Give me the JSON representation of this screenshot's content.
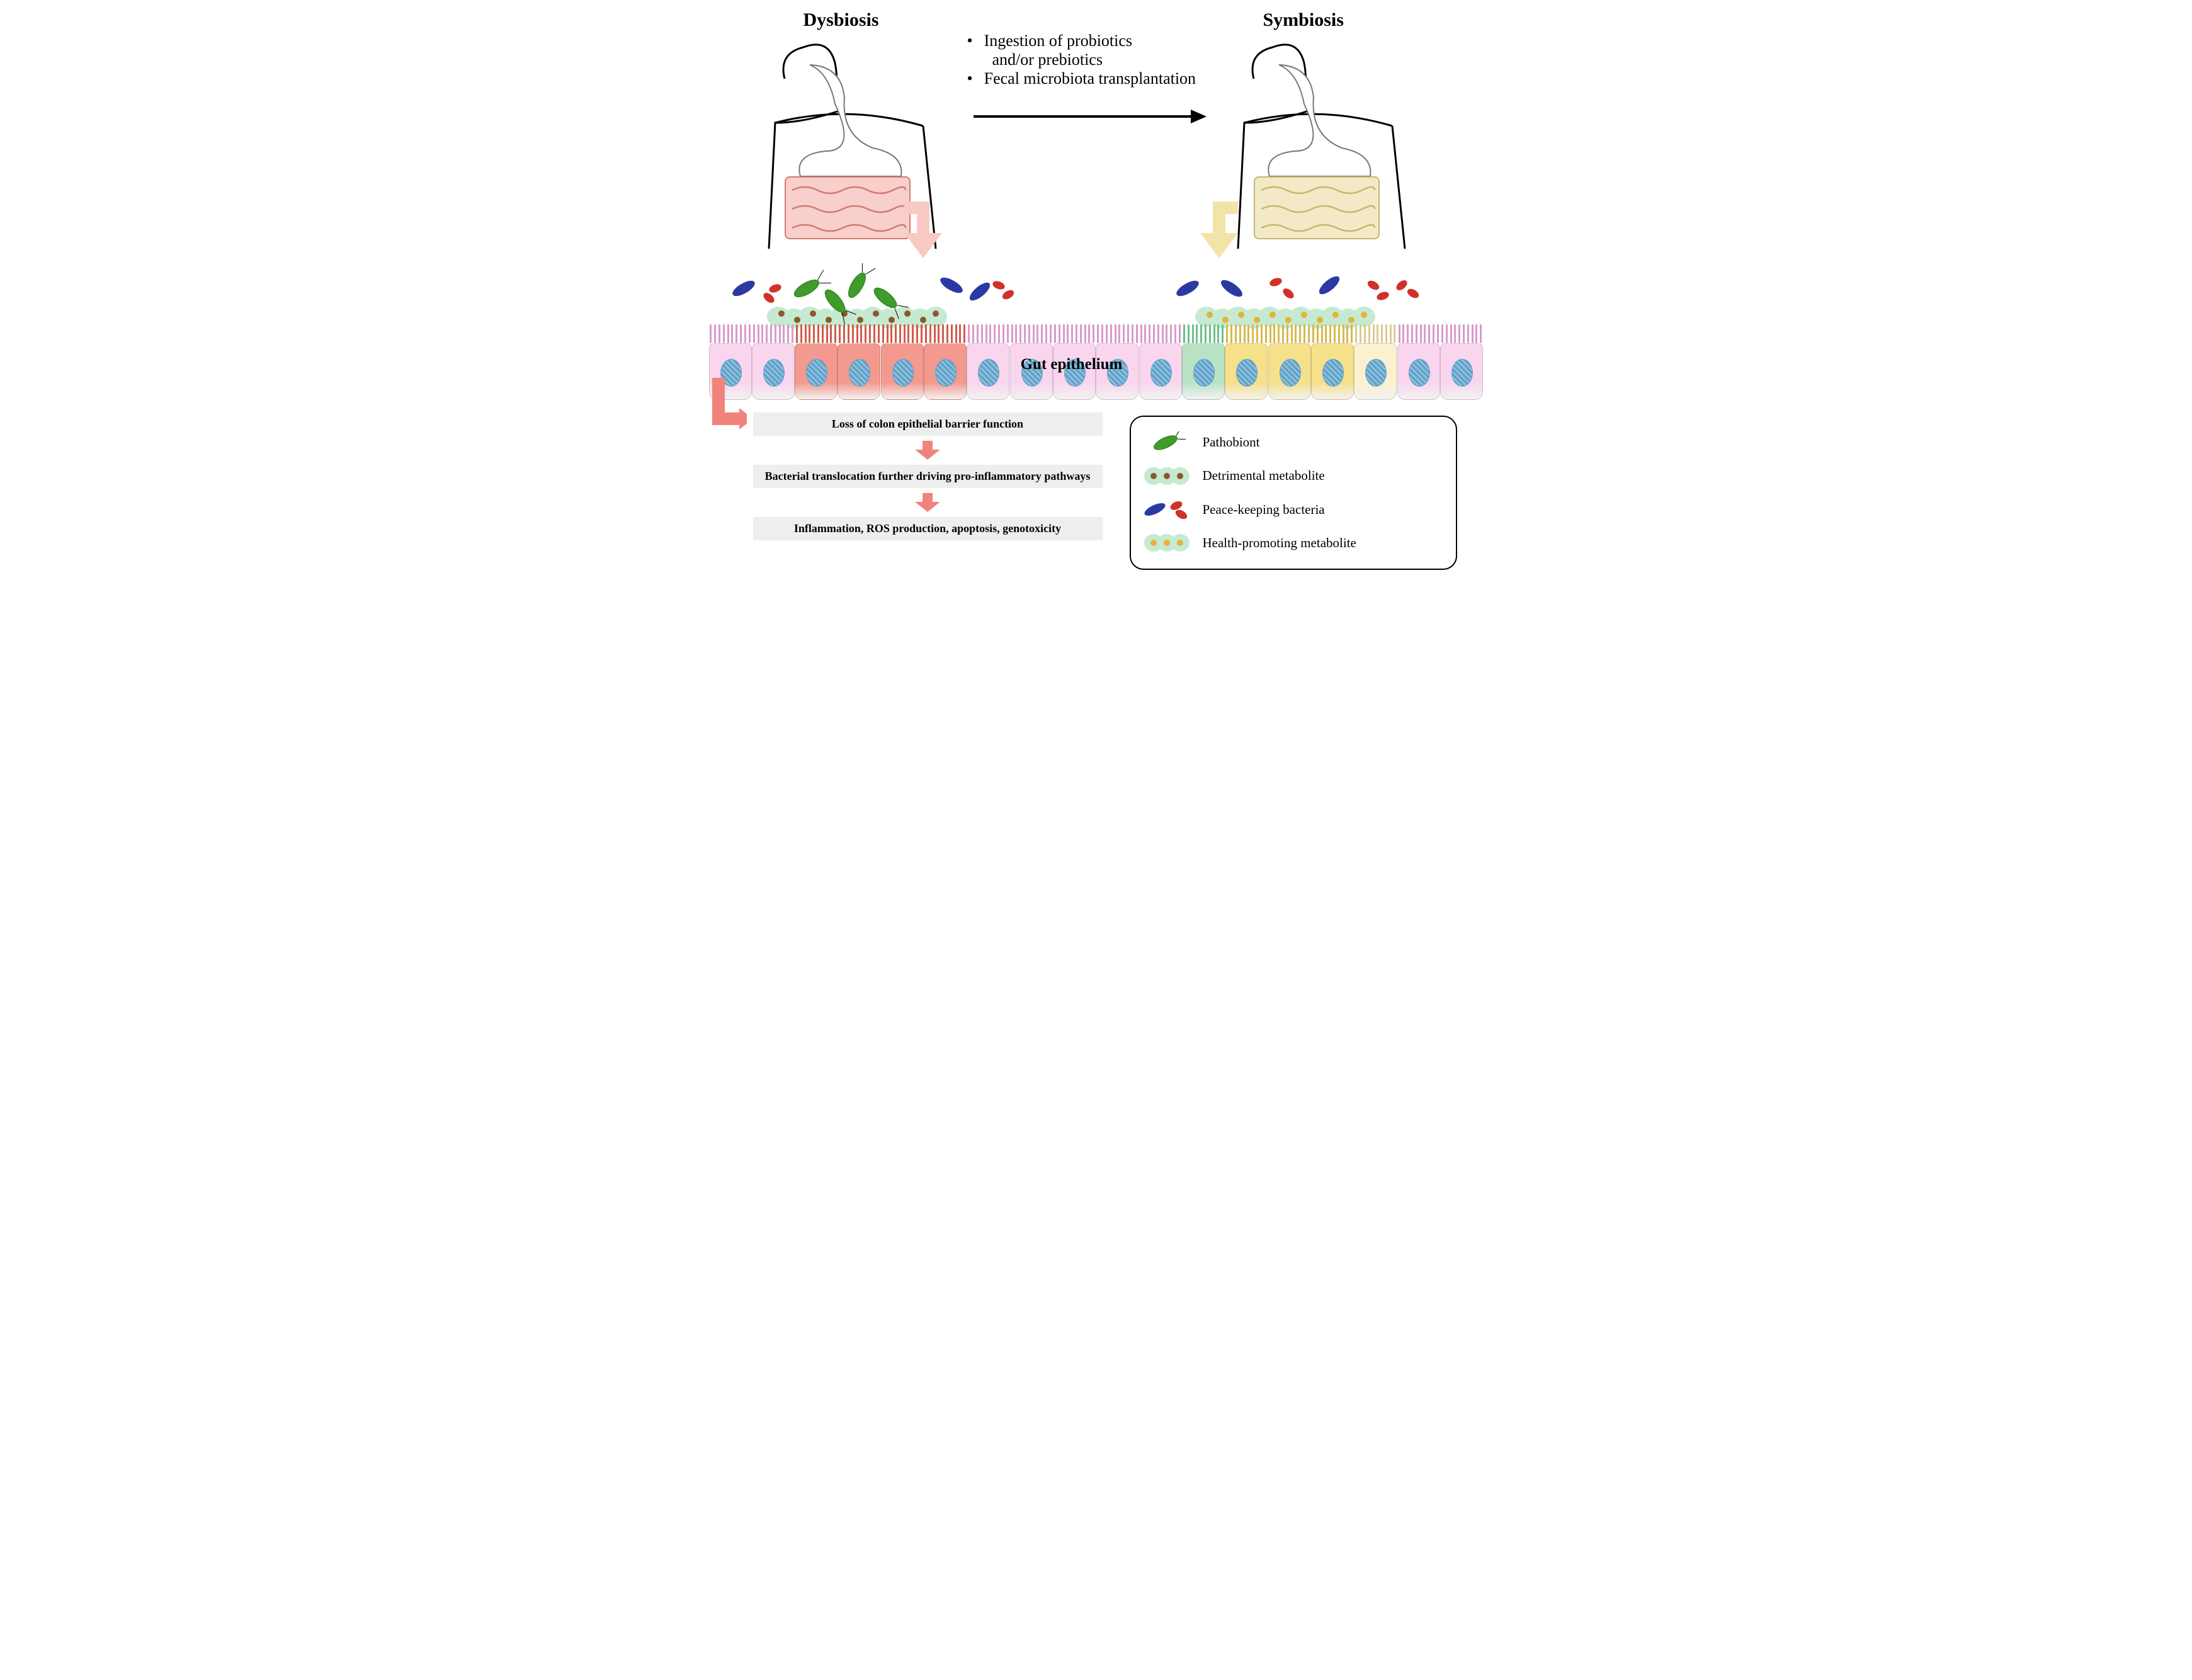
{
  "titles": {
    "dysbiosis": "Dysbiosis",
    "symbiosis": "Symbiosis"
  },
  "intervention": {
    "line1a": "Ingestion of probiotics",
    "line1b": "and/or prebiotics",
    "line2": "Fecal microbiota transplantation"
  },
  "gut_label": "Gut epithelium",
  "effects": {
    "step1": "Loss of colon epithelial barrier function",
    "step2": "Bacterial translocation further driving pro-inflammatory pathways",
    "step3": "Inflammation, ROS production, apoptosis, genotoxicity"
  },
  "legend": {
    "pathobiont": "Pathobiont",
    "detrimental": "Detrimental metabolite",
    "peacekeeping": "Peace-keeping bacteria",
    "healthpromoting": "Health-promoting metabolite"
  },
  "colors": {
    "cell_pink": "#f9d6ee",
    "cell_pink_brush": "#d99acb",
    "cell_red": "#f4998e",
    "cell_red_brush": "#d45a4a",
    "cell_yellow": "#f6e08a",
    "cell_yellow_brush": "#d6b94e",
    "cell_cream": "#faf2cf",
    "cell_cream_brush": "#d8cb8f",
    "cell_green": "#b9e2c5",
    "cell_green_brush": "#6cbf8a",
    "arrow_red": "#f1837a",
    "arrow_light_red": "#f9cac3",
    "arrow_light_yellow": "#f2e4a8",
    "metab_good_cloud": "#c6ead1",
    "metab_good_dot": "#e5b23b",
    "metab_bad_cloud": "#c6ead1",
    "metab_bad_dot": "#8a5a2b",
    "pathobiont": "#3f9b2a",
    "bact_blue": "#2b3aa3",
    "bact_red": "#d13129",
    "black": "#000000",
    "grey_box": "#eeeeee"
  },
  "epithelium_pattern": [
    "pink",
    "pink",
    "red",
    "red",
    "red",
    "red",
    "pink",
    "pink",
    "pink",
    "pink",
    "pink",
    "green",
    "yellow",
    "yellow",
    "yellow",
    "cream",
    "pink",
    "pink"
  ],
  "fonts": {
    "title": 30,
    "body": 26,
    "gut": 25,
    "effects": 18,
    "legend": 21
  }
}
